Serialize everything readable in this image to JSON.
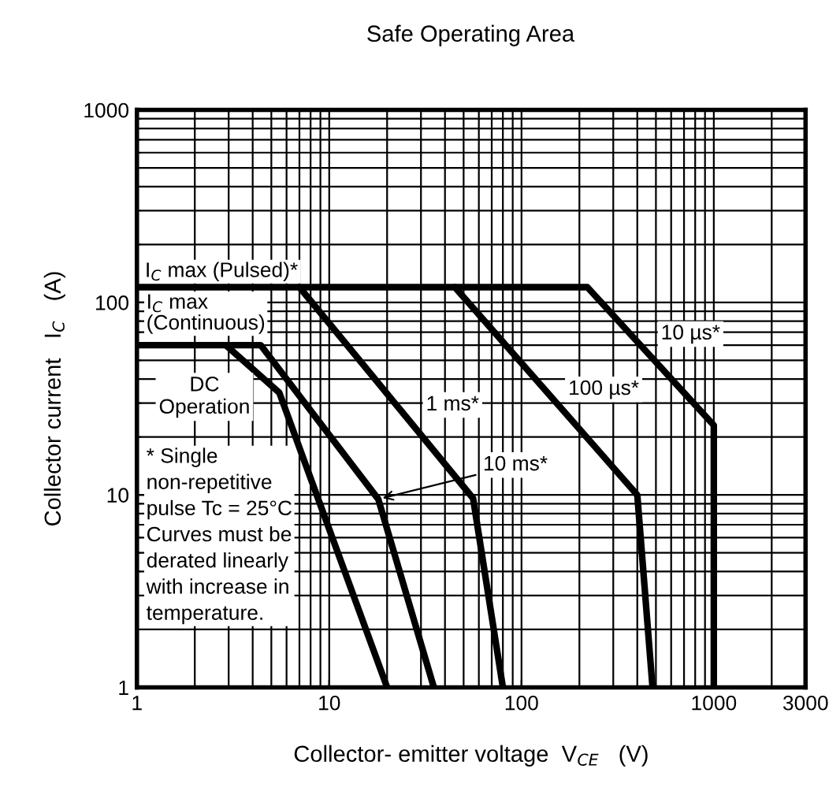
{
  "chart_data": {
    "type": "line",
    "title": "Safe Operating Area",
    "xlabel": "Collector- emitter voltage  V$_{CE}$   (V)",
    "ylabel": "Collector current   I$_{C}$   (A)",
    "log": "xy",
    "xlim": [
      1,
      3000
    ],
    "ylim": [
      1,
      1000
    ],
    "xticks": [
      1,
      10,
      100,
      1000,
      3000
    ],
    "yticks": [
      1,
      10,
      100,
      1000
    ],
    "grid": true,
    "legend": false,
    "line_style": "solid",
    "marker": "none",
    "series": [
      {
        "name": "10 µs*",
        "color": "#000000",
        "x": [
          1,
          220,
          1000,
          1000
        ],
        "values": [
          120,
          120,
          23,
          1
        ]
      },
      {
        "name": "100 µs*",
        "color": "#000000",
        "x": [
          45,
          400,
          480
        ],
        "values": [
          120,
          10,
          1
        ]
      },
      {
        "name": "1 ms*",
        "color": "#000000",
        "x": [
          7,
          56,
          80
        ],
        "values": [
          120,
          9.6,
          1
        ]
      },
      {
        "name": "10 ms*",
        "color": "#000000",
        "x": [
          1,
          4.4,
          18,
          35
        ],
        "values": [
          60,
          60,
          9.5,
          1
        ]
      },
      {
        "name": "DC\nOperation",
        "color": "#000000",
        "x": [
          2.9,
          5.5,
          20
        ],
        "values": [
          60,
          34,
          1
        ]
      }
    ],
    "annotations": [
      "I$_{C}$ max (Pulsed)*",
      "I$_{C}$ max\n(Continuous)",
      "* Single\nnon-repetitive\npulse Tc = 25°C\nCurves must be\nderated linearly\nwith increase in\ntemperature."
    ]
  }
}
